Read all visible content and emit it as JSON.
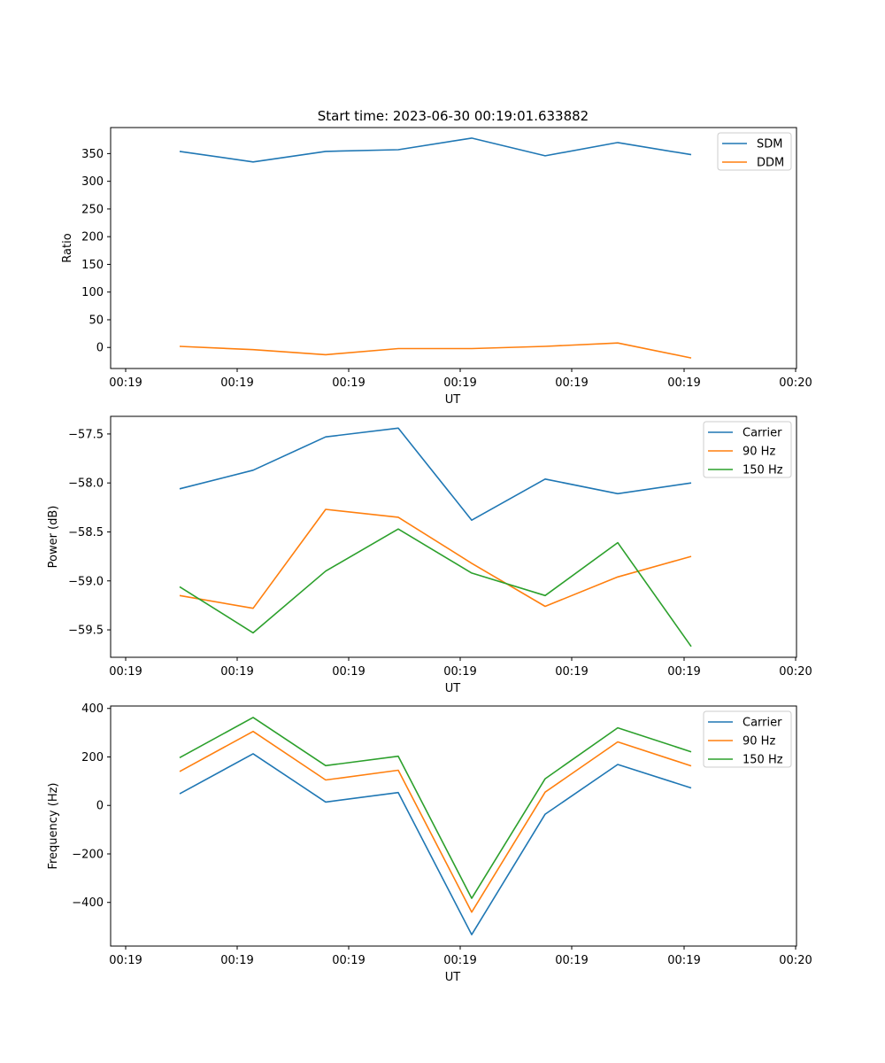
{
  "figure": {
    "title": "Start time: 2023-06-30 00:19:01.633882"
  },
  "chart_data": [
    {
      "type": "line",
      "title": "Start time: 2023-06-30 00:19:01.633882",
      "xlabel": "UT",
      "ylabel": "Ratio",
      "x_tick_labels": [
        "00:19",
        "00:19",
        "00:19",
        "00:19",
        "00:19",
        "00:19",
        "00:20"
      ],
      "y_ticks": [
        0,
        50,
        100,
        150,
        200,
        250,
        300,
        350
      ],
      "ylim": [
        -38,
        397
      ],
      "grid": false,
      "legend_position": "top-right",
      "series": [
        {
          "name": "SDM",
          "color": "#1f77b4",
          "values": [
            354,
            335,
            354,
            357,
            378,
            346,
            370,
            348
          ]
        },
        {
          "name": "DDM",
          "color": "#ff7f0e",
          "values": [
            2,
            -4,
            -13,
            -2,
            -2,
            2,
            8,
            -19
          ]
        }
      ]
    },
    {
      "type": "line",
      "title": "",
      "xlabel": "UT",
      "ylabel": "Power (dB)",
      "x_tick_labels": [
        "00:19",
        "00:19",
        "00:19",
        "00:19",
        "00:19",
        "00:19",
        "00:20"
      ],
      "y_ticks": [
        -59.5,
        -59.0,
        -58.5,
        -58.0,
        -57.5
      ],
      "y_tick_labels": [
        "−59.5",
        "−59.0",
        "−58.5",
        "−58.0",
        "−57.5"
      ],
      "ylim": [
        -59.78,
        -57.32
      ],
      "grid": false,
      "legend_position": "top-right",
      "series": [
        {
          "name": "Carrier",
          "color": "#1f77b4",
          "values": [
            -58.06,
            -57.87,
            -57.53,
            -57.44,
            -58.38,
            -57.96,
            -58.11,
            -58.0
          ]
        },
        {
          "name": "90 Hz",
          "color": "#ff7f0e",
          "values": [
            -59.15,
            -59.28,
            -58.27,
            -58.35,
            -58.82,
            -59.26,
            -58.96,
            -58.75
          ]
        },
        {
          "name": "150 Hz",
          "color": "#2ca02c",
          "values": [
            -59.06,
            -59.53,
            -58.9,
            -58.47,
            -58.92,
            -59.15,
            -58.61,
            -59.67
          ]
        }
      ]
    },
    {
      "type": "line",
      "title": "",
      "xlabel": "UT",
      "ylabel": "Frequency (Hz)",
      "x_tick_labels": [
        "00:19",
        "00:19",
        "00:19",
        "00:19",
        "00:19",
        "00:19",
        "00:20"
      ],
      "y_ticks": [
        -400,
        -200,
        0,
        200,
        400
      ],
      "y_tick_labels": [
        "−400",
        "−200",
        "0",
        "200",
        "400"
      ],
      "ylim": [
        -580,
        410
      ],
      "grid": false,
      "legend_position": "top-right",
      "series": [
        {
          "name": "Carrier",
          "color": "#1f77b4",
          "values": [
            48,
            213,
            14,
            53,
            -533,
            -36,
            169,
            72
          ]
        },
        {
          "name": "90 Hz",
          "color": "#ff7f0e",
          "values": [
            140,
            305,
            105,
            145,
            -440,
            55,
            262,
            163
          ]
        },
        {
          "name": "150 Hz",
          "color": "#2ca02c",
          "values": [
            197,
            363,
            164,
            203,
            -383,
            110,
            320,
            221
          ]
        }
      ]
    }
  ]
}
